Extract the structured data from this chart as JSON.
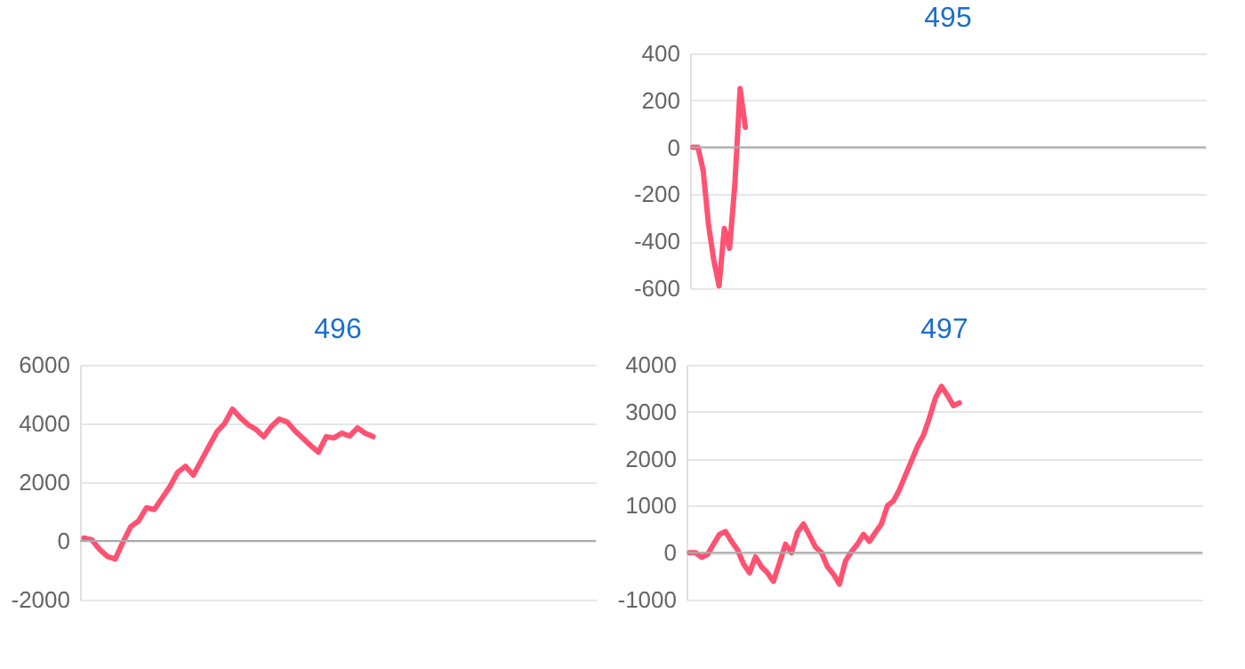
{
  "chart_data": [
    {
      "type": "line",
      "title": "495",
      "color": "#ff5272",
      "ylim": [
        -600,
        400
      ],
      "yticks": [
        -600,
        -400,
        -200,
        0,
        200,
        400
      ],
      "grid": "y",
      "tick_labels": "y",
      "ref_lines": [
        {
          "axis": "y",
          "value": 0,
          "color": "#aaaaaa"
        }
      ],
      "categories": [
        null,
        null,
        null,
        null,
        null,
        null,
        null,
        null,
        null,
        null,
        null,
        null,
        null,
        null,
        null,
        null,
        null,
        null,
        null,
        null,
        null,
        null,
        null,
        null,
        null,
        null,
        null,
        null,
        null,
        null,
        null,
        null,
        null,
        null,
        null,
        null,
        null,
        null,
        null,
        null,
        null,
        null,
        null,
        null,
        null,
        null,
        null,
        null,
        null,
        null,
        null,
        null,
        null,
        null,
        null,
        null,
        null,
        null,
        null,
        null,
        null,
        null,
        null,
        null,
        null,
        null,
        null,
        null,
        null,
        null,
        null,
        null,
        null,
        null,
        null,
        null,
        null,
        null,
        null,
        null,
        null,
        null,
        null,
        null,
        null,
        null,
        null,
        null,
        null,
        null,
        null,
        null,
        null,
        null,
        null,
        null,
        null,
        null
      ],
      "values": [
        0,
        0,
        -100,
        -330,
        -480,
        -590,
        -345,
        -430,
        -160,
        250,
        85,
        null,
        null,
        null,
        null,
        null,
        null,
        null,
        null,
        null,
        null,
        null,
        null,
        null,
        null,
        null,
        null,
        null,
        null,
        null,
        null,
        null,
        null,
        null,
        null,
        null,
        null,
        null,
        null,
        null,
        null,
        null,
        null,
        null,
        null,
        null,
        null,
        null,
        null,
        null,
        null,
        null,
        null,
        null,
        null,
        null,
        null,
        null,
        null,
        null,
        null,
        null,
        null,
        null,
        null,
        null,
        null,
        null,
        null,
        null,
        null,
        null,
        null,
        null,
        null,
        null,
        null,
        null,
        null,
        null,
        null,
        null,
        null,
        null,
        null,
        null,
        null,
        null,
        null,
        null,
        null,
        null,
        null,
        null,
        null,
        null,
        null,
        null
      ]
    },
    {
      "type": "line",
      "title": "496",
      "color": "#ff5272",
      "ylim": [
        -2000,
        6000
      ],
      "yticks": [
        -2000,
        0,
        2000,
        4000,
        6000
      ],
      "grid": "y",
      "tick_labels": "y",
      "ref_lines": [
        {
          "axis": "y",
          "value": 0,
          "color": "#aaaaaa"
        }
      ],
      "categories": [
        null,
        null,
        null,
        null,
        null,
        null,
        null,
        null,
        null,
        null,
        null,
        null,
        null,
        null,
        null,
        null,
        null,
        null,
        null,
        null,
        null,
        null,
        null,
        null,
        null,
        null,
        null,
        null,
        null,
        null,
        null,
        null,
        null,
        null,
        null,
        null,
        null,
        null,
        null,
        null,
        null,
        null,
        null,
        null,
        null,
        null,
        null,
        null,
        null,
        null,
        null,
        null,
        null,
        null,
        null,
        null,
        null,
        null,
        null,
        null,
        null,
        null,
        null,
        null,
        null,
        null
      ],
      "values": [
        100,
        40,
        -290,
        -530,
        -620,
        -40,
        490,
        680,
        1130,
        1070,
        1460,
        1850,
        2340,
        2540,
        2240,
        2730,
        3220,
        3710,
        4000,
        4490,
        4200,
        3960,
        3800,
        3550,
        3900,
        4150,
        4050,
        3750,
        3500,
        3250,
        3020,
        3550,
        3510,
        3670,
        3570,
        3850,
        3670,
        3550,
        null,
        null,
        null,
        null,
        null,
        null,
        null,
        null,
        null,
        null,
        null,
        null,
        null,
        null,
        null,
        null,
        null,
        null,
        null,
        null,
        null,
        null,
        null,
        null,
        null,
        null,
        null,
        null
      ]
    },
    {
      "type": "line",
      "title": "497",
      "color": "#ff5272",
      "ylim": [
        -1000,
        4000
      ],
      "yticks": [
        -1000,
        0,
        1000,
        2000,
        3000,
        4000
      ],
      "grid": "y",
      "tick_labels": "y",
      "ref_lines": [
        {
          "axis": "y",
          "value": 0,
          "color": "#aaaaaa"
        }
      ],
      "categories": [
        null,
        null,
        null,
        null,
        null,
        null,
        null,
        null,
        null,
        null,
        null,
        null,
        null,
        null,
        null,
        null,
        null,
        null,
        null,
        null,
        null,
        null,
        null,
        null,
        null,
        null,
        null,
        null,
        null,
        null,
        null,
        null,
        null,
        null,
        null,
        null,
        null,
        null,
        null,
        null,
        null,
        null,
        null,
        null,
        null,
        null,
        null,
        null,
        null,
        null,
        null,
        null,
        null,
        null,
        null,
        null,
        null,
        null,
        null,
        null,
        null,
        null,
        null,
        null,
        null,
        null,
        null,
        null,
        null,
        null,
        null,
        null,
        null,
        null,
        null,
        null,
        null,
        null,
        null,
        null,
        null,
        null,
        null,
        null,
        null,
        null
      ],
      "values": [
        0,
        0,
        -100,
        -40,
        180,
        390,
        450,
        240,
        60,
        -240,
        -430,
        -90,
        -300,
        -430,
        -610,
        -220,
        180,
        0,
        430,
        610,
        370,
        120,
        0,
        -300,
        -460,
        -670,
        -180,
        20,
        180,
        390,
        240,
        430,
        610,
        1000,
        1100,
        1340,
        1650,
        1950,
        2260,
        2500,
        2870,
        3290,
        3540,
        3350,
        3130,
        3190,
        null,
        null,
        null,
        null,
        null,
        null,
        null,
        null,
        null,
        null,
        null,
        null,
        null,
        null,
        null,
        null,
        null,
        null,
        null,
        null,
        null,
        null,
        null,
        null,
        null,
        null,
        null,
        null,
        null,
        null,
        null,
        null,
        null,
        null,
        null,
        null,
        null,
        null,
        null,
        null
      ]
    }
  ]
}
